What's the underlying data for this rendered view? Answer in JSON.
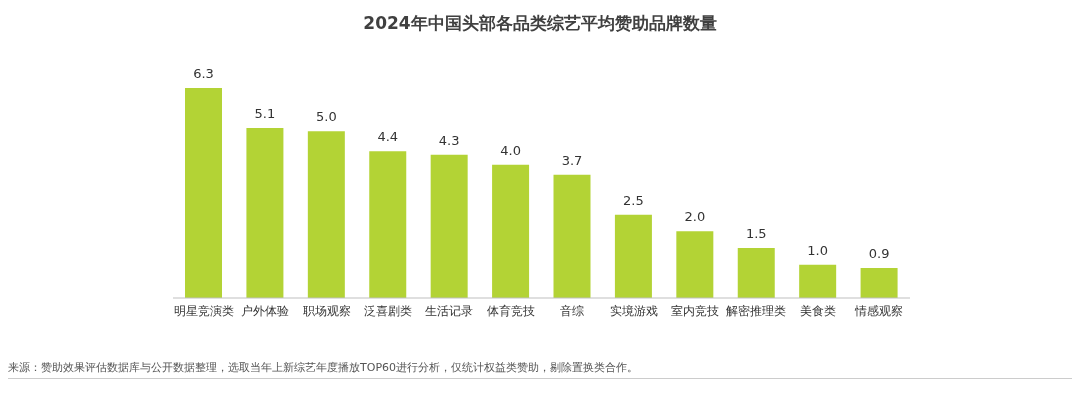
{
  "chart_data": {
    "type": "bar",
    "title": "2024年中国头部各品类综艺平均赞助品牌数量",
    "categories": [
      "明星竞演类",
      "户外体验",
      "职场观察",
      "泛喜剧类",
      "生活记录",
      "体育竞技",
      "音综",
      "实境游戏",
      "室内竞技",
      "解密推理类",
      "美食类",
      "情感观察"
    ],
    "values": [
      6.3,
      5.1,
      5.0,
      4.4,
      4.3,
      4.0,
      3.7,
      2.5,
      2.0,
      1.5,
      1.0,
      0.9
    ],
    "value_labels": [
      "6.3",
      "5.1",
      "5.0",
      "4.4",
      "4.3",
      "4.0",
      "3.7",
      "2.5",
      "2.0",
      "1.5",
      "1.0",
      "0.9"
    ],
    "color": "#b3d335",
    "grid": false,
    "legend": false,
    "annotations": [
      "来源：赞助效果评估数据库与公开数据整理，选取当年上新综艺年度播放TOP60进行分析，仅统计权益类赞助，剔除置换类合作。"
    ]
  }
}
